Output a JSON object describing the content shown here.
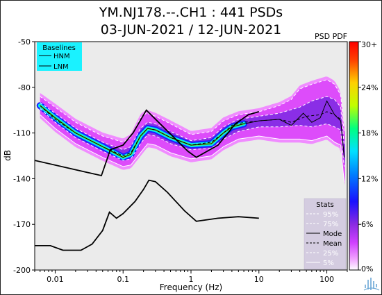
{
  "header": {
    "title_line1": "YM.NJ178.--.CH1 : 441 PSDs",
    "title_line2": "03-JUN-2021 / 12-JUN-2021"
  },
  "colorbar": {
    "label": "PSD PDF",
    "tick_labels": [
      "30+",
      "24%",
      "18%",
      "12%",
      "6%",
      "0%"
    ]
  },
  "chart_data": {
    "type": "line",
    "xlabel": "Frequency (Hz)",
    "ylabel": "dB",
    "x_scale": "log",
    "xlim": [
      0.005,
      200
    ],
    "ylim": [
      -200,
      -50
    ],
    "x_ticks": [
      0.01,
      0.1,
      1,
      10,
      100
    ],
    "x_tick_labels": [
      "0.01",
      "0.1",
      "1",
      "10",
      "100"
    ],
    "y_ticks": [
      -50,
      -80,
      -110,
      -140,
      -170,
      -200
    ],
    "y_tick_labels": [
      "-50",
      "-80",
      "-110",
      "-140",
      "-170",
      "-200"
    ],
    "legend_baselines": {
      "title": "Baselines",
      "entries": [
        "HNM",
        "LNM"
      ],
      "placement": "top-left",
      "color": "#1af2ff"
    },
    "legend_stats": {
      "title": "Stats",
      "entries": [
        "95%",
        "75%",
        "Mode",
        "Mean",
        "25%",
        "5%"
      ],
      "placement": "bottom-right"
    },
    "series": [
      {
        "name": "HNM",
        "style": "solid",
        "color": "#000000",
        "points": [
          [
            0.005,
            -128
          ],
          [
            0.048,
            -138
          ],
          [
            0.065,
            -121
          ],
          [
            0.1,
            -118
          ],
          [
            0.14,
            -110
          ],
          [
            0.22,
            -95
          ],
          [
            0.9,
            -122
          ],
          [
            1.2,
            -126
          ],
          [
            2.5,
            -118
          ],
          [
            4.5,
            -104
          ],
          [
            7,
            -98
          ],
          [
            10,
            -96
          ]
        ]
      },
      {
        "name": "LNM",
        "style": "solid",
        "color": "#000000",
        "points": [
          [
            0.005,
            -184
          ],
          [
            0.0085,
            -184
          ],
          [
            0.013,
            -187
          ],
          [
            0.024,
            -187
          ],
          [
            0.035,
            -183
          ],
          [
            0.05,
            -174
          ],
          [
            0.063,
            -162
          ],
          [
            0.08,
            -166
          ],
          [
            0.1,
            -163
          ],
          [
            0.15,
            -155
          ],
          [
            0.2,
            -147
          ],
          [
            0.24,
            -141
          ],
          [
            0.3,
            -142
          ],
          [
            0.45,
            -149
          ],
          [
            0.8,
            -161
          ],
          [
            1.2,
            -168
          ],
          [
            2.5,
            -166
          ],
          [
            5,
            -165
          ],
          [
            10,
            -166
          ]
        ]
      },
      {
        "name": "Mode",
        "style": "solid",
        "color": "#000000",
        "points": [
          [
            0.006,
            -92
          ],
          [
            0.01,
            -100
          ],
          [
            0.02,
            -110
          ],
          [
            0.05,
            -119
          ],
          [
            0.1,
            -126
          ],
          [
            0.13,
            -124
          ],
          [
            0.18,
            -112
          ],
          [
            0.23,
            -107
          ],
          [
            0.3,
            -108
          ],
          [
            0.5,
            -113
          ],
          [
            1,
            -118
          ],
          [
            2,
            -117
          ],
          [
            3,
            -110
          ],
          [
            4,
            -106
          ],
          [
            6,
            -104
          ],
          [
            10,
            -102
          ],
          [
            20,
            -101
          ],
          [
            30,
            -105
          ],
          [
            45,
            -97
          ],
          [
            60,
            -103
          ],
          [
            80,
            -100
          ],
          [
            100,
            -89
          ],
          [
            130,
            -98
          ],
          [
            160,
            -102
          ],
          [
            180,
            -125
          ]
        ]
      },
      {
        "name": "Mean",
        "style": "dashed",
        "color": "#000000",
        "points": [
          [
            0.006,
            -92
          ],
          [
            0.01,
            -101
          ],
          [
            0.02,
            -110
          ],
          [
            0.05,
            -119
          ],
          [
            0.1,
            -125
          ],
          [
            0.13,
            -123
          ],
          [
            0.18,
            -112
          ],
          [
            0.23,
            -107
          ],
          [
            0.3,
            -108
          ],
          [
            0.5,
            -113
          ],
          [
            1,
            -118
          ],
          [
            2,
            -116
          ],
          [
            3,
            -110
          ],
          [
            4,
            -105
          ],
          [
            6,
            -103
          ],
          [
            10,
            -102
          ],
          [
            20,
            -101
          ],
          [
            30,
            -103
          ],
          [
            50,
            -99
          ],
          [
            80,
            -98
          ],
          [
            100,
            -96
          ],
          [
            130,
            -98
          ],
          [
            160,
            -101
          ],
          [
            180,
            -126
          ]
        ]
      },
      {
        "name": "95%",
        "style": "dashed",
        "color": "#ffffff",
        "points": [
          [
            0.006,
            -86
          ],
          [
            0.01,
            -93
          ],
          [
            0.02,
            -103
          ],
          [
            0.05,
            -112
          ],
          [
            0.1,
            -116
          ],
          [
            0.13,
            -113
          ],
          [
            0.18,
            -100
          ],
          [
            0.22,
            -97
          ],
          [
            0.3,
            -99
          ],
          [
            0.5,
            -104
          ],
          [
            1,
            -111
          ],
          [
            2,
            -109
          ],
          [
            3,
            -102
          ],
          [
            5,
            -98
          ],
          [
            10,
            -96
          ],
          [
            20,
            -92
          ],
          [
            30,
            -88
          ],
          [
            40,
            -81
          ],
          [
            60,
            -78
          ],
          [
            100,
            -75
          ],
          [
            130,
            -78
          ],
          [
            160,
            -85
          ],
          [
            180,
            -110
          ]
        ]
      },
      {
        "name": "75%",
        "style": "dashed",
        "color": "#ffffff",
        "points": [
          [
            0.006,
            -90
          ],
          [
            0.01,
            -97
          ],
          [
            0.02,
            -107
          ],
          [
            0.05,
            -116
          ],
          [
            0.1,
            -121
          ],
          [
            0.13,
            -119
          ],
          [
            0.18,
            -107
          ],
          [
            0.23,
            -103
          ],
          [
            0.3,
            -104
          ],
          [
            0.5,
            -109
          ],
          [
            1,
            -115
          ],
          [
            2,
            -113
          ],
          [
            3,
            -106
          ],
          [
            5,
            -101
          ],
          [
            10,
            -99
          ],
          [
            20,
            -97
          ],
          [
            40,
            -93
          ],
          [
            60,
            -89
          ],
          [
            100,
            -86
          ],
          [
            130,
            -88
          ],
          [
            160,
            -93
          ],
          [
            180,
            -118
          ]
        ]
      },
      {
        "name": "25%",
        "style": "dashed",
        "color": "#ffffff",
        "points": [
          [
            0.006,
            -94
          ],
          [
            0.01,
            -103
          ],
          [
            0.02,
            -113
          ],
          [
            0.05,
            -122
          ],
          [
            0.1,
            -128
          ],
          [
            0.13,
            -127
          ],
          [
            0.18,
            -117
          ],
          [
            0.23,
            -111
          ],
          [
            0.3,
            -112
          ],
          [
            0.5,
            -117
          ],
          [
            1,
            -121
          ],
          [
            2,
            -120
          ],
          [
            3,
            -114
          ],
          [
            5,
            -109
          ],
          [
            10,
            -106
          ],
          [
            20,
            -106
          ],
          [
            40,
            -105
          ],
          [
            60,
            -106
          ],
          [
            100,
            -104
          ],
          [
            130,
            -106
          ],
          [
            160,
            -108
          ],
          [
            180,
            -132
          ]
        ]
      },
      {
        "name": "5%",
        "style": "solid",
        "color": "#ffffff",
        "points": [
          [
            0.006,
            -98
          ],
          [
            0.01,
            -107
          ],
          [
            0.02,
            -117
          ],
          [
            0.05,
            -126
          ],
          [
            0.1,
            -132
          ],
          [
            0.13,
            -131
          ],
          [
            0.18,
            -123
          ],
          [
            0.23,
            -117
          ],
          [
            0.3,
            -118
          ],
          [
            0.5,
            -123
          ],
          [
            1,
            -127
          ],
          [
            2,
            -125
          ],
          [
            3,
            -119
          ],
          [
            5,
            -114
          ],
          [
            10,
            -112
          ],
          [
            20,
            -114
          ],
          [
            40,
            -114
          ],
          [
            60,
            -115
          ],
          [
            100,
            -112
          ],
          [
            130,
            -116
          ],
          [
            160,
            -118
          ],
          [
            180,
            -142
          ]
        ]
      }
    ]
  }
}
